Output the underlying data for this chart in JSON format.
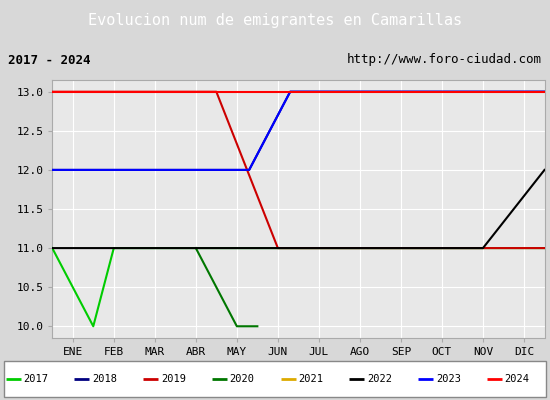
{
  "title": "Evolucion num de emigrantes en Camarillas",
  "subtitle_left": "2017 - 2024",
  "subtitle_right": "http://www.foro-ciudad.com",
  "ylim": [
    9.85,
    13.15
  ],
  "xlim": [
    -0.5,
    11.5
  ],
  "months": [
    "ENE",
    "FEB",
    "MAR",
    "ABR",
    "MAY",
    "JUN",
    "JUL",
    "AGO",
    "SEP",
    "OCT",
    "NOV",
    "DIC"
  ],
  "yticks": [
    10.0,
    10.5,
    11.0,
    11.5,
    12.0,
    12.5,
    13.0
  ],
  "background_color": "#d8d8d8",
  "plot_bg_color": "#e8e8e8",
  "grid_color": "#ffffff",
  "series": [
    {
      "label": "2017",
      "color": "#00cc00",
      "x": [
        -0.5,
        0.5,
        1.0,
        11.5
      ],
      "y": [
        11,
        10,
        11,
        11
      ]
    },
    {
      "label": "2018",
      "color": "#000080",
      "x": [
        -0.5,
        4.3,
        5.3,
        11.5
      ],
      "y": [
        12,
        12,
        13,
        13
      ]
    },
    {
      "label": "2019",
      "color": "#cc0000",
      "x": [
        -0.5,
        3.5,
        5.0,
        11.5
      ],
      "y": [
        13,
        13,
        11,
        11
      ]
    },
    {
      "label": "2020",
      "color": "#007700",
      "x": [
        3.0,
        4.0,
        4.5
      ],
      "y": [
        11,
        10,
        10
      ]
    },
    {
      "label": "2021",
      "color": "#ddaa00",
      "x": [],
      "y": []
    },
    {
      "label": "2022",
      "color": "#000000",
      "x": [
        -0.5,
        10.0,
        11.5
      ],
      "y": [
        11,
        11,
        12
      ]
    },
    {
      "label": "2023",
      "color": "#0000ff",
      "x": [
        -0.5,
        4.3,
        5.3,
        11.5
      ],
      "y": [
        12,
        12,
        13,
        13
      ]
    },
    {
      "label": "2024",
      "color": "#ff0000",
      "x": [
        -0.5,
        11.5
      ],
      "y": [
        13,
        13
      ]
    }
  ],
  "legend_labels": [
    "2017",
    "2018",
    "2019",
    "2020",
    "2021",
    "2022",
    "2023",
    "2024"
  ],
  "legend_colors": [
    "#00cc00",
    "#000080",
    "#cc0000",
    "#007700",
    "#ddaa00",
    "#000000",
    "#0000ff",
    "#ff0000"
  ],
  "title_bg": "#5b8dd9",
  "title_color": "#ffffff",
  "title_fontsize": 11,
  "subtitle_fontsize": 9,
  "tick_fontsize": 8
}
